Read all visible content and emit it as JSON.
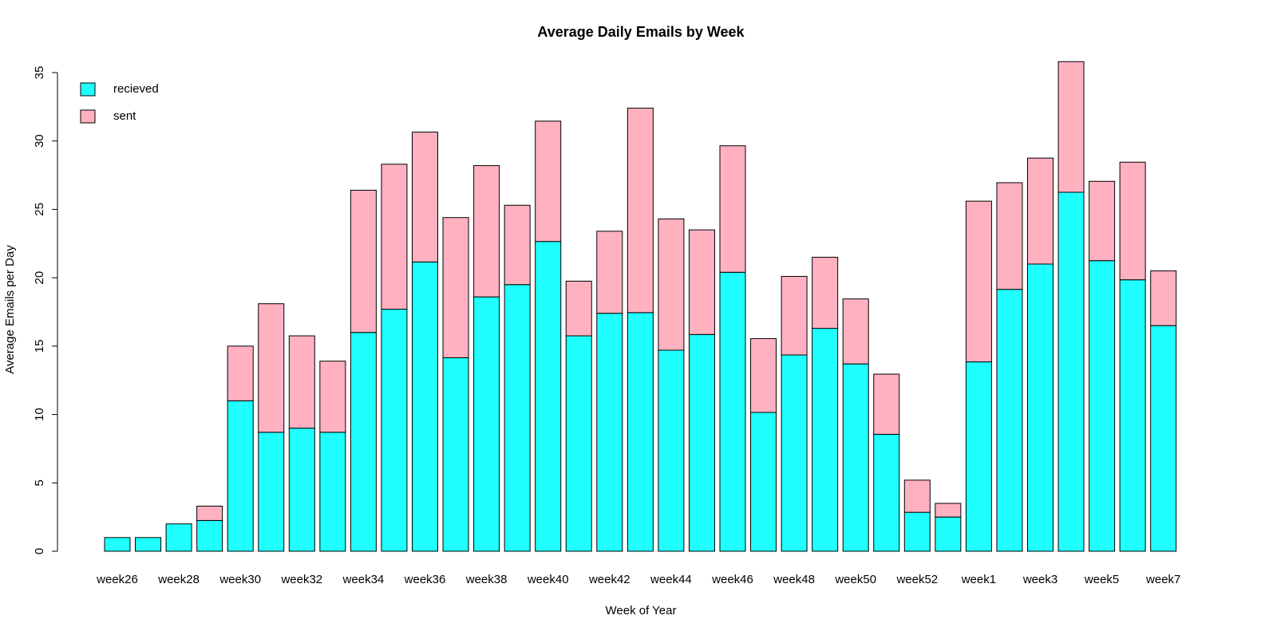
{
  "chart_data": {
    "type": "stacked_bar",
    "title": "Average Daily Emails by Week",
    "x_label": "Week of Year",
    "y_label": "Average Emails per Day",
    "categories": [
      "week26",
      null,
      "week28",
      null,
      "week30",
      null,
      "week32",
      null,
      "week34",
      null,
      "week36",
      null,
      "week38",
      null,
      "week40",
      null,
      "week42",
      null,
      "week44",
      null,
      "week46",
      null,
      "week48",
      null,
      "week50",
      null,
      "week52",
      null,
      "week1",
      null,
      "week3",
      null,
      "week5",
      null,
      "week7"
    ],
    "series": [
      {
        "name": "recieved",
        "color": "#1fffff",
        "values": [
          1.0,
          1.0,
          2.0,
          2.25,
          11.0,
          8.7,
          9.0,
          8.7,
          16.0,
          17.7,
          21.15,
          14.15,
          18.6,
          19.5,
          22.65,
          15.75,
          17.4,
          17.45,
          14.7,
          15.85,
          20.4,
          10.15,
          14.35,
          16.3,
          13.7,
          8.55,
          2.85,
          2.5,
          13.85,
          19.15,
          21.0,
          26.25,
          21.25,
          19.85,
          16.5
        ]
      },
      {
        "name": "sent",
        "color": "#ffb1c1",
        "values": [
          0,
          0,
          0,
          1.05,
          4.0,
          9.4,
          6.75,
          5.2,
          10.4,
          10.6,
          9.5,
          10.25,
          9.6,
          5.8,
          8.8,
          4.0,
          6.0,
          14.95,
          9.6,
          7.65,
          9.25,
          5.4,
          5.75,
          5.2,
          4.75,
          4.4,
          2.35,
          1.0,
          11.75,
          7.8,
          7.75,
          9.55,
          5.8,
          8.6,
          4.0
        ]
      }
    ],
    "ylim": [
      0,
      35
    ],
    "yticks": [
      0,
      5,
      10,
      15,
      20,
      25,
      30,
      35
    ],
    "legend": "top-left",
    "grid": false
  }
}
